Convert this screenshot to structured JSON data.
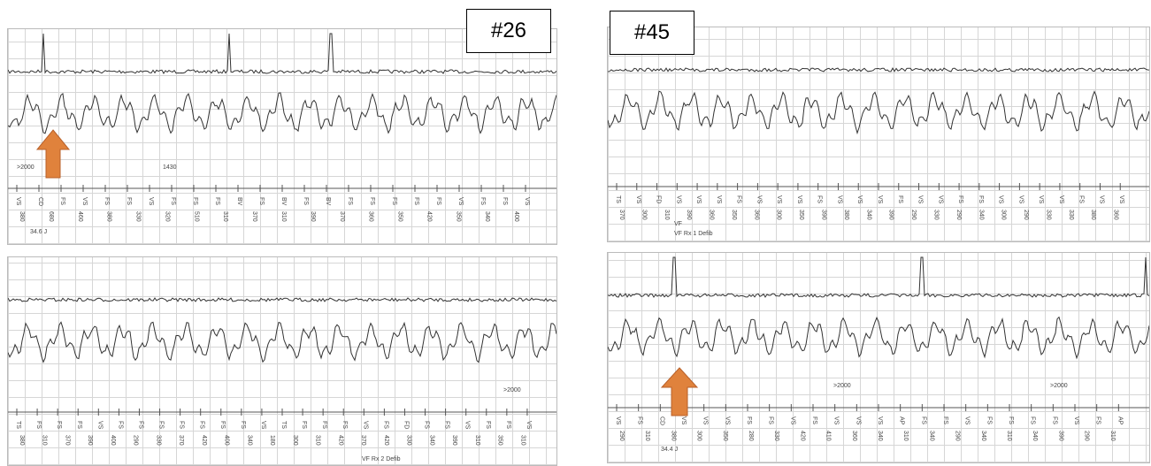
{
  "case_labels": [
    "#26",
    "#45"
  ],
  "strips": [
    {
      "annotations": [
        ">2000",
        "1430"
      ],
      "markers": [
        "VS",
        "CD",
        "FS",
        "VS",
        "FS",
        "FS",
        "VS",
        "FS",
        "FS",
        "FS",
        "BV",
        "FS",
        "BV",
        "FS",
        "BV",
        "FS",
        "FS",
        "FS",
        "FS",
        "FS",
        "VS",
        "FS",
        "FS",
        "VS"
      ],
      "intervals": [
        "380",
        "680",
        "460",
        "380",
        "330",
        "320",
        "510",
        "310",
        "370",
        "310",
        "390",
        "370",
        "360",
        "350",
        "420",
        "350",
        "340",
        "400"
      ],
      "energy": "34.6 J"
    },
    {
      "annotations": [
        ">2000",
        "VF Rx 2 Defib"
      ],
      "markers": [
        "TS",
        "FS",
        "FS",
        "FS",
        "VS",
        "FS",
        "FS",
        "FS",
        "FS",
        "FS",
        "FS",
        "FS",
        "VS",
        "TS",
        "FS",
        "FS",
        "FS",
        "VS",
        "FS",
        "FD",
        "FS",
        "FS",
        "VS",
        "FS",
        "FS",
        "VS"
      ],
      "intervals": [
        "380",
        "310",
        "370",
        "390",
        "400",
        "290",
        "330",
        "370",
        "420",
        "400",
        "340",
        "180",
        "300",
        "310",
        "420",
        "370",
        "420",
        "330",
        "340",
        "390",
        "310",
        "350",
        "310"
      ]
    },
    {
      "annotations": [
        "VF",
        "VF Rx 1 Defib"
      ],
      "markers": [
        "TS",
        "VS",
        "FD",
        "VS",
        "VS",
        "VS",
        "FS",
        "VS",
        "VS",
        "VS",
        "FS",
        "VS",
        "VS",
        "VS",
        "FS",
        "VS",
        "VS",
        "FS",
        "FS",
        "VS",
        "VS",
        "VS",
        "VS",
        "FS",
        "VS",
        "VS"
      ],
      "intervals": [
        "370",
        "300",
        "310",
        "390",
        "360",
        "350",
        "360",
        "300",
        "350",
        "390",
        "380",
        "340",
        "390",
        "290",
        "330",
        "290",
        "340",
        "300",
        "290",
        "330",
        "330",
        "380",
        "360"
      ]
    },
    {
      "annotations": [
        ">2000",
        ">2000",
        "34.4 J"
      ],
      "markers": [
        "VS",
        "FS",
        "CD",
        "VS",
        "VS",
        "VS",
        "FS",
        "FS",
        "VS",
        "FS",
        "VS",
        "VS",
        "VS",
        "AP",
        "FS",
        "FS",
        "VS",
        "FS",
        "FS",
        "FS",
        "FS",
        "VS",
        "FS",
        "AP"
      ],
      "intervals": [
        "290",
        "310",
        "380",
        "300",
        "350",
        "280",
        "330",
        "420",
        "410",
        "360",
        "340",
        "310",
        "340",
        "290",
        "340",
        "310",
        "340",
        "390",
        "290",
        "310"
      ]
    }
  ]
}
